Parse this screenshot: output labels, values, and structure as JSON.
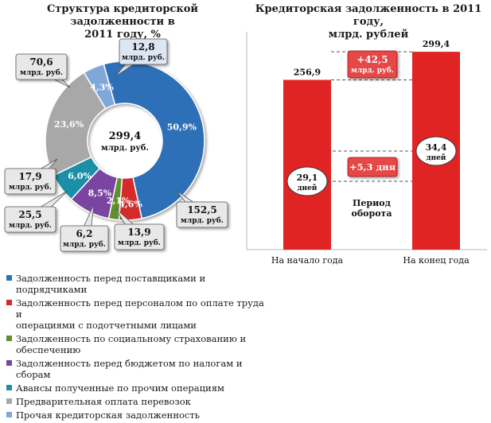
{
  "colors": {
    "suppliers": "#2e6fb8",
    "personnel": "#d42a2a",
    "social": "#5e8f2e",
    "budget": "#7a45a0",
    "advances": "#1e8fa8",
    "prepayment": "#a8a8a8",
    "other": "#7fa7d8",
    "bar": "#e02424",
    "callout_fill": "#e8e8e8",
    "delta_fill": "#e64646"
  },
  "chart_data": [
    {
      "type": "pie",
      "title": "Структура кредиторской задолженности в 2011 году, %",
      "title_lines": [
        "Структура кредиторской задолженности в",
        "2011 году, %"
      ],
      "center_label": {
        "value": "299,4",
        "unit": "млрд. руб."
      },
      "slices": [
        {
          "key": "suppliers",
          "name": "Задолженность перед поставщиками и подрядчиками",
          "percent": 50.9,
          "percent_label": "50,9%",
          "value_label": "152,5",
          "unit": "млрд. руб."
        },
        {
          "key": "personnel",
          "name": "Задолженность перед персоналом по оплате труда и операциями с подотчетными лицами",
          "percent": 4.6,
          "percent_label": "4,6%",
          "value_label": "13,9",
          "unit": "млрд. руб."
        },
        {
          "key": "social",
          "name": "Задолженность по социальному страхованию и обеспечению",
          "percent": 2.1,
          "percent_label": "2,1%",
          "value_label": "6,2",
          "unit": "млрд. руб."
        },
        {
          "key": "budget",
          "name": "Задолженность перед бюджетом по налогам и сборам",
          "percent": 8.5,
          "percent_label": "8,5%",
          "value_label": "25,5",
          "unit": "млрд. руб."
        },
        {
          "key": "advances",
          "name": "Авансы полученные по прочим операциям",
          "percent": 6.0,
          "percent_label": "6,0%",
          "value_label": "17,9",
          "unit": "млрд. руб."
        },
        {
          "key": "prepayment",
          "name": "Предварительная оплата перевозок",
          "percent": 23.6,
          "percent_label": "23,6%",
          "value_label": "70,6",
          "unit": "млрд. руб."
        },
        {
          "key": "other",
          "name": "Прочая кредиторская задолженность",
          "percent": 4.3,
          "percent_label": "4,3%",
          "value_label": "12,8",
          "unit": "млрд. руб."
        }
      ],
      "legend_lines": {
        "suppliers": [
          "Задолженность перед поставщиками и подрядчиками"
        ],
        "personnel": [
          "Задолженность перед персоналом по оплате труда и",
          "операциями с подотчетными лицами"
        ],
        "social": [
          "Задолженность по социальному страхованию и",
          "обеспечению"
        ],
        "budget": [
          "Задолженность перед бюджетом по налогам и сборам"
        ],
        "advances": [
          "Авансы полученные по прочим операциям"
        ],
        "prepayment": [
          "Предварительная оплата перевозок"
        ],
        "other": [
          "Прочая кредиторская задолженность"
        ]
      }
    },
    {
      "type": "bar",
      "title": "Кредиторская задолженность в 2011 году, млрд. рублей",
      "title_lines": [
        "Кредиторская задолженность в 2011 году,",
        "млрд. рублей"
      ],
      "categories": [
        "На начало года",
        "На конец года"
      ],
      "values": [
        256.9,
        299.4
      ],
      "value_labels": [
        "256,9",
        "299,4"
      ],
      "ylim": [
        0,
        320
      ],
      "delta": {
        "label": "+42,5",
        "unit": "млрд. руб."
      },
      "period": {
        "title_lines": [
          "Период",
          "оборота"
        ],
        "start": {
          "value": 29.1,
          "label": "29,1",
          "unit": "дней"
        },
        "end": {
          "value": 34.4,
          "label": "34,4",
          "unit": "дней"
        },
        "delta_label": "+5,3 дня"
      }
    }
  ]
}
